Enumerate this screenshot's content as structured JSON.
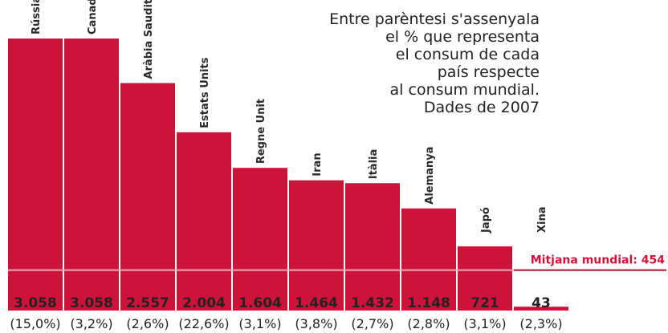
{
  "chart_data": {
    "type": "bar",
    "note": [
      "Entre parèntesi s'assenyala",
      "el % que representa",
      "el consum de cada",
      "país respecte",
      "al consum mundial.",
      "Dades de 2007"
    ],
    "categories": [
      "Rússia",
      "Canadà",
      "Aràbia Saudita",
      "Estats Units",
      "Regne Unit",
      "Iran",
      "Itàlia",
      "Alemanya",
      "Japó",
      "Xina"
    ],
    "values": [
      3058,
      3058,
      2557,
      2004,
      1604,
      1464,
      1432,
      1148,
      721,
      43
    ],
    "value_labels": [
      "3.058",
      "3.058",
      "2.557",
      "2.004",
      "1.604",
      "1.464",
      "1.432",
      "1.148",
      "721",
      "43"
    ],
    "shares": [
      "(15,0%)",
      "(3,2%)",
      "(2,6%)",
      "(22,6%)",
      "(3,1%)",
      "(3,8%)",
      "(2,7%)",
      "(2,8%)",
      "(3,1%)",
      "(2,3%)"
    ],
    "color": "#cc1339",
    "average": {
      "value": 454,
      "label": "Mitjana mundial: 454"
    }
  }
}
